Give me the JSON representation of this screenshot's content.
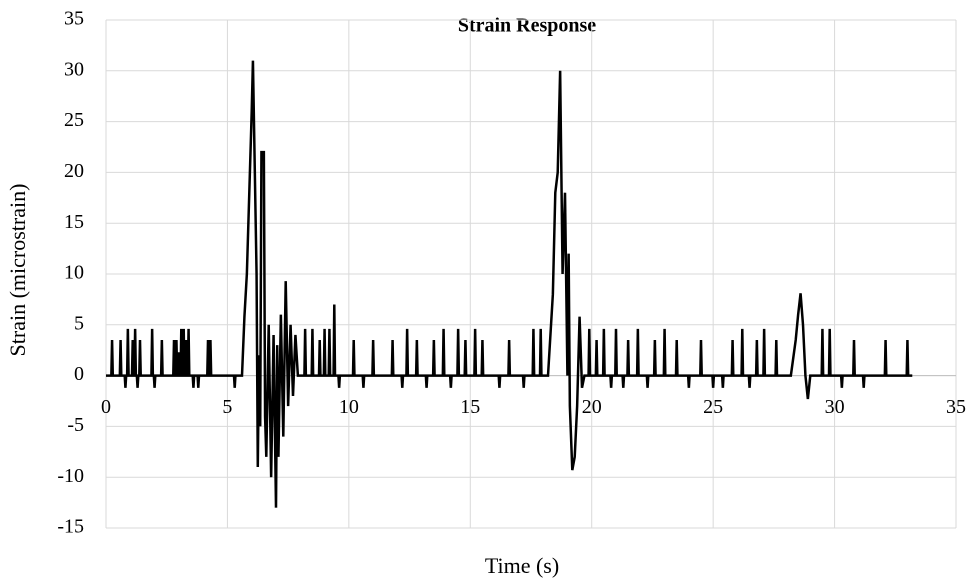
{
  "chart_data": {
    "type": "line",
    "title": "Strain Response",
    "xlabel": "Time (s)",
    "ylabel": "Strain (microstrain)",
    "color": "#000000",
    "grid": true,
    "xlim": [
      0,
      35
    ],
    "xticks": [
      0,
      5,
      10,
      15,
      20,
      25,
      30,
      35
    ],
    "ylim": [
      -15,
      35
    ],
    "yticks": [
      -15,
      -10,
      -5,
      0,
      5,
      10,
      15,
      20,
      25,
      30,
      35
    ],
    "x": [
      0,
      0.22,
      0.25,
      0.28,
      0.57,
      0.6,
      0.63,
      0.77,
      0.8,
      0.83,
      0.87,
      0.9,
      0.93,
      1.07,
      1.1,
      1.13,
      1.17,
      1.2,
      1.23,
      1.27,
      1.3,
      1.33,
      1.37,
      1.4,
      1.43,
      1.87,
      1.9,
      1.93,
      1.97,
      2.0,
      2.03,
      2.27,
      2.3,
      2.33,
      2.77,
      2.8,
      2.83,
      2.87,
      2.9,
      2.93,
      2.97,
      3.0,
      3.03,
      3.07,
      3.1,
      3.13,
      3.17,
      3.2,
      3.23,
      3.27,
      3.3,
      3.33,
      3.37,
      3.4,
      3.43,
      3.57,
      3.6,
      3.63,
      3.77,
      3.8,
      3.83,
      4.17,
      4.2,
      4.23,
      4.27,
      4.3,
      4.33,
      5.27,
      5.3,
      5.33,
      5.6,
      5.7,
      5.8,
      5.9,
      6.0,
      6.05,
      6.1,
      6.2,
      6.25,
      6.3,
      6.35,
      6.4,
      6.5,
      6.55,
      6.6,
      6.7,
      6.8,
      6.9,
      7.0,
      7.05,
      7.1,
      7.2,
      7.3,
      7.4,
      7.5,
      7.6,
      7.7,
      7.8,
      7.9,
      8.17,
      8.2,
      8.23,
      8.47,
      8.5,
      8.53,
      8.77,
      8.8,
      8.83,
      8.97,
      9.0,
      9.03,
      9.17,
      9.2,
      9.23,
      9.37,
      9.4,
      9.43,
      9.57,
      9.6,
      9.63,
      10.17,
      10.2,
      10.23,
      10.57,
      10.6,
      10.63,
      10.97,
      11.0,
      11.03,
      11.77,
      11.8,
      11.83,
      12.17,
      12.2,
      12.23,
      12.37,
      12.4,
      12.43,
      12.77,
      12.8,
      12.83,
      13.17,
      13.2,
      13.23,
      13.47,
      13.5,
      13.53,
      13.87,
      13.9,
      13.93,
      14.17,
      14.2,
      14.23,
      14.47,
      14.5,
      14.53,
      14.77,
      14.8,
      14.83,
      15.17,
      15.2,
      15.23,
      15.47,
      15.5,
      15.53,
      16.17,
      16.2,
      16.23,
      16.57,
      16.6,
      16.63,
      17.17,
      17.2,
      17.23,
      17.57,
      17.6,
      17.63,
      17.87,
      17.9,
      17.93,
      18.2,
      18.4,
      18.5,
      18.6,
      18.7,
      18.8,
      18.9,
      19.0,
      19.05,
      19.1,
      19.2,
      19.3,
      19.4,
      19.5,
      19.6,
      19.7,
      19.87,
      19.9,
      19.93,
      20.17,
      20.2,
      20.23,
      20.47,
      20.5,
      20.53,
      20.77,
      20.8,
      20.83,
      20.97,
      21.0,
      21.03,
      21.27,
      21.3,
      21.33,
      21.47,
      21.5,
      21.53,
      21.87,
      21.9,
      21.93,
      22.27,
      22.3,
      22.33,
      22.57,
      22.6,
      22.63,
      22.97,
      23.0,
      23.03,
      23.47,
      23.5,
      23.53,
      23.97,
      24.0,
      24.03,
      24.47,
      24.5,
      24.53,
      24.97,
      25.0,
      25.03,
      25.37,
      25.4,
      25.43,
      25.77,
      25.8,
      25.83,
      26.17,
      26.2,
      26.23,
      26.47,
      26.5,
      26.53,
      26.77,
      26.8,
      26.83,
      27.07,
      27.1,
      27.13,
      27.57,
      27.6,
      27.63,
      28.2,
      28.4,
      28.5,
      28.6,
      28.7,
      28.8,
      28.9,
      29.0,
      29.47,
      29.5,
      29.53,
      29.77,
      29.8,
      29.83,
      30.27,
      30.3,
      30.33,
      30.77,
      30.8,
      30.83,
      31.17,
      31.2,
      31.23,
      32.07,
      32.1,
      32.13,
      32.97,
      33.0,
      33.03,
      33.2
    ],
    "values": [
      0,
      0,
      3.5,
      0,
      0,
      3.5,
      0,
      0,
      -1.2,
      0,
      0,
      4.6,
      0,
      0,
      3.5,
      0,
      0,
      4.6,
      0,
      0,
      -1.2,
      0,
      0,
      3.5,
      0,
      0,
      4.6,
      0,
      0,
      -1.2,
      0,
      0,
      3.5,
      0,
      0,
      3.5,
      0,
      0,
      3.5,
      0,
      0,
      2.3,
      0,
      0,
      4.6,
      0,
      0,
      4.6,
      0,
      0,
      3.5,
      0,
      0,
      4.6,
      0,
      0,
      -1.2,
      0,
      0,
      -1.2,
      0,
      0,
      3.5,
      0,
      0,
      3.5,
      0,
      0,
      -1.2,
      0,
      0,
      5.8,
      10,
      18,
      26,
      31,
      24,
      10,
      -9,
      2,
      -5,
      22,
      22,
      -4,
      -8,
      5,
      -10,
      4,
      -13,
      3,
      -8,
      6,
      -6,
      9.3,
      -3,
      5,
      -2,
      4,
      0,
      0,
      4.6,
      0,
      0,
      4.6,
      0,
      0,
      3.5,
      0,
      0,
      4.6,
      0,
      0,
      4.6,
      0,
      0,
      7,
      0,
      0,
      -1.2,
      0,
      0,
      3.5,
      0,
      0,
      -1.2,
      0,
      0,
      3.5,
      0,
      0,
      3.5,
      0,
      0,
      -1.2,
      0,
      0,
      4.6,
      0,
      0,
      3.5,
      0,
      0,
      -1.2,
      0,
      0,
      3.5,
      0,
      0,
      4.6,
      0,
      0,
      -1.2,
      0,
      0,
      4.6,
      0,
      0,
      3.5,
      0,
      0,
      4.6,
      0,
      0,
      3.5,
      0,
      0,
      -1.2,
      0,
      0,
      3.5,
      0,
      0,
      -1.2,
      0,
      0,
      4.6,
      0,
      0,
      4.6,
      0,
      0,
      8,
      18,
      20,
      30,
      10,
      18,
      0,
      12,
      -3,
      -9.3,
      -8,
      -3,
      5.8,
      -1.2,
      0,
      0,
      4.6,
      0,
      0,
      3.5,
      0,
      0,
      4.6,
      0,
      0,
      -1.2,
      0,
      0,
      4.6,
      0,
      0,
      -1.2,
      0,
      0,
      3.5,
      0,
      0,
      4.6,
      0,
      0,
      -1.2,
      0,
      0,
      3.5,
      0,
      0,
      4.6,
      0,
      0,
      3.5,
      0,
      0,
      -1.2,
      0,
      0,
      3.5,
      0,
      0,
      -1.2,
      0,
      0,
      -1.2,
      0,
      0,
      3.5,
      0,
      0,
      4.6,
      0,
      0,
      -1.2,
      0,
      0,
      3.5,
      0,
      0,
      4.6,
      0,
      0,
      3.5,
      0,
      0,
      3.5,
      6,
      8.1,
      5,
      0,
      -2.3,
      0,
      0,
      4.6,
      0,
      0,
      4.6,
      0,
      0,
      -1.2,
      0,
      0,
      3.5,
      0,
      0,
      -1.2,
      0,
      0,
      3.5,
      0,
      0,
      3.5,
      0,
      0
    ]
  }
}
